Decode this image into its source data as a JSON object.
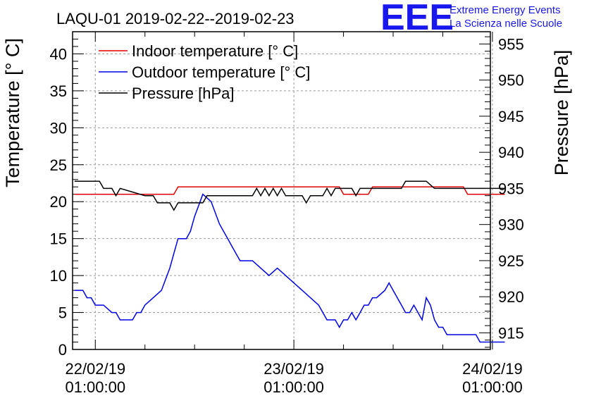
{
  "chart_data": {
    "type": "line",
    "title": "LAQU-01 2019-02-22--2019-02-23",
    "logo": {
      "mark": "EEE",
      "line1": "Extreme Energy Events",
      "line2": "La Scienza nelle Scuole"
    },
    "ylabel_left": "Temperature [° C]",
    "ylabel_right": "Pressure [hPa]",
    "x_range_hours": [
      -2.75,
      47.75
    ],
    "y_left_range": [
      0,
      43
    ],
    "y_right_range": [
      912.7,
      956.7
    ],
    "x_ticks": [
      {
        "hour": 0,
        "line1": "22/02/19",
        "line2": "01:00:00"
      },
      {
        "hour": 24,
        "line1": "23/02/19",
        "line2": "01:00:00"
      },
      {
        "hour": 48,
        "line1": "24/02/19",
        "line2": "01:00:00"
      }
    ],
    "y_left_ticks": [
      "0",
      "5",
      "10",
      "15",
      "20",
      "25",
      "30",
      "35",
      "40"
    ],
    "y_right_ticks": [
      "915",
      "920",
      "925",
      "930",
      "935",
      "940",
      "945",
      "950",
      "955"
    ],
    "legend": [
      {
        "label": "Indoor temperature [° C]",
        "color": "#e00000"
      },
      {
        "label": "Outdoor temperature [° C]",
        "color": "#0000e6"
      },
      {
        "label": "Pressure [hPa]",
        "color": "#000000"
      }
    ],
    "series": [
      {
        "name": "Indoor temperature [° C]",
        "axis": "left",
        "color": "#e00000",
        "x": [
          -2.5,
          9.5,
          10,
          29.5,
          30,
          33,
          33.5,
          44.5,
          45,
          49.5
        ],
        "y": [
          21,
          21,
          22,
          22,
          21,
          21,
          22,
          22,
          21,
          21
        ]
      },
      {
        "name": "Outdoor temperature [° C]",
        "axis": "left",
        "color": "#0000e6",
        "x": [
          -2.5,
          -1.5,
          -1,
          -0.5,
          0,
          0.5,
          1,
          2,
          2.5,
          3,
          3.5,
          4,
          4.5,
          5,
          5.5,
          6,
          7,
          8,
          9,
          9.5,
          10,
          10.5,
          11,
          11.5,
          12,
          13,
          14,
          15,
          16,
          16.5,
          17,
          17.5,
          18,
          19,
          20,
          21,
          22,
          23,
          24,
          25,
          26,
          27,
          27.5,
          28,
          29,
          29.5,
          30,
          30.5,
          31,
          31.5,
          32,
          32.5,
          33,
          33.5,
          34,
          35,
          35.5,
          36,
          36.5,
          37,
          37.5,
          38,
          38.5,
          39,
          39.5,
          40,
          40.5,
          41,
          41.5,
          42,
          42.5,
          43,
          44,
          45,
          46,
          46.5,
          47,
          47.5,
          48,
          48.5,
          49,
          49.5
        ],
        "y": [
          8,
          8,
          7,
          7,
          6,
          6,
          6,
          5,
          5,
          4,
          4,
          4,
          4,
          5,
          5,
          6,
          7,
          8,
          11,
          13,
          15,
          15,
          15,
          16,
          18,
          21,
          20,
          17,
          15,
          14,
          13,
          12,
          12,
          12,
          11,
          10,
          11,
          10,
          9,
          8,
          7,
          6,
          5,
          4,
          4,
          3,
          4,
          4,
          5,
          4,
          5,
          6,
          6,
          7,
          7,
          8,
          9,
          8,
          7,
          6,
          5,
          5,
          6,
          5,
          4,
          7,
          6,
          4,
          3,
          3,
          2,
          2,
          2,
          2,
          2,
          1,
          1,
          1,
          1,
          1,
          1,
          1
        ]
      },
      {
        "name": "Pressure [hPa]",
        "axis": "right",
        "color": "#000000",
        "x": [
          -2.5,
          0.5,
          1,
          1.5,
          2,
          2.5,
          3,
          6,
          7,
          7.5,
          8,
          9,
          9.5,
          10,
          13,
          13.5,
          14,
          16,
          17,
          18,
          19,
          19.5,
          20,
          20.5,
          21,
          21.5,
          22,
          22.5,
          23,
          24,
          25,
          25.5,
          26,
          26.5,
          27,
          27.5,
          28,
          28.5,
          29,
          30,
          31,
          31.5,
          32,
          33,
          34,
          35,
          36,
          37,
          37.5,
          38,
          40,
          41,
          42,
          43,
          44,
          45,
          46,
          47,
          48,
          49.5
        ],
        "y": [
          936,
          936,
          935,
          935,
          935,
          934,
          935,
          934,
          934,
          933,
          933,
          933,
          932,
          933,
          933,
          934,
          934,
          934,
          934,
          934,
          934,
          935,
          934,
          935,
          934,
          935,
          934,
          935,
          934,
          934,
          934,
          933,
          934,
          934,
          934,
          934,
          935,
          934,
          935,
          935,
          935,
          934,
          935,
          935,
          935,
          935,
          935,
          935,
          936,
          936,
          936,
          935,
          935,
          935,
          935,
          935,
          935,
          935,
          935,
          935
        ]
      }
    ]
  }
}
